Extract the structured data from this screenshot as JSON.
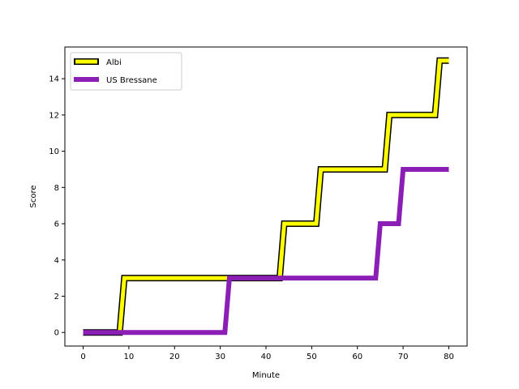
{
  "chart_data": {
    "type": "line",
    "title": "",
    "xlabel": "Minute",
    "ylabel": "Score",
    "xlim": [
      -4,
      84
    ],
    "ylim": [
      -0.75,
      15.75
    ],
    "xticks": [
      0,
      10,
      20,
      30,
      40,
      50,
      60,
      70,
      80
    ],
    "yticks": [
      0,
      2,
      4,
      6,
      8,
      10,
      12,
      14
    ],
    "grid": false,
    "legend_position": "upper-left",
    "series": [
      {
        "name": "Albi",
        "color": "#ffff00",
        "edge_color": "#000000",
        "points": [
          [
            0,
            0
          ],
          [
            8,
            0
          ],
          [
            9,
            3
          ],
          [
            43,
            3
          ],
          [
            44,
            6
          ],
          [
            51,
            6
          ],
          [
            52,
            9
          ],
          [
            66,
            9
          ],
          [
            67,
            12
          ],
          [
            77,
            12
          ],
          [
            78,
            15
          ],
          [
            80,
            15
          ]
        ]
      },
      {
        "name": "US Bressane",
        "color": "#8b1fb5",
        "points": [
          [
            0,
            0
          ],
          [
            31,
            0
          ],
          [
            32,
            3
          ],
          [
            64,
            3
          ],
          [
            65,
            6
          ],
          [
            69,
            6
          ],
          [
            70,
            9
          ],
          [
            80,
            9
          ]
        ]
      }
    ]
  }
}
